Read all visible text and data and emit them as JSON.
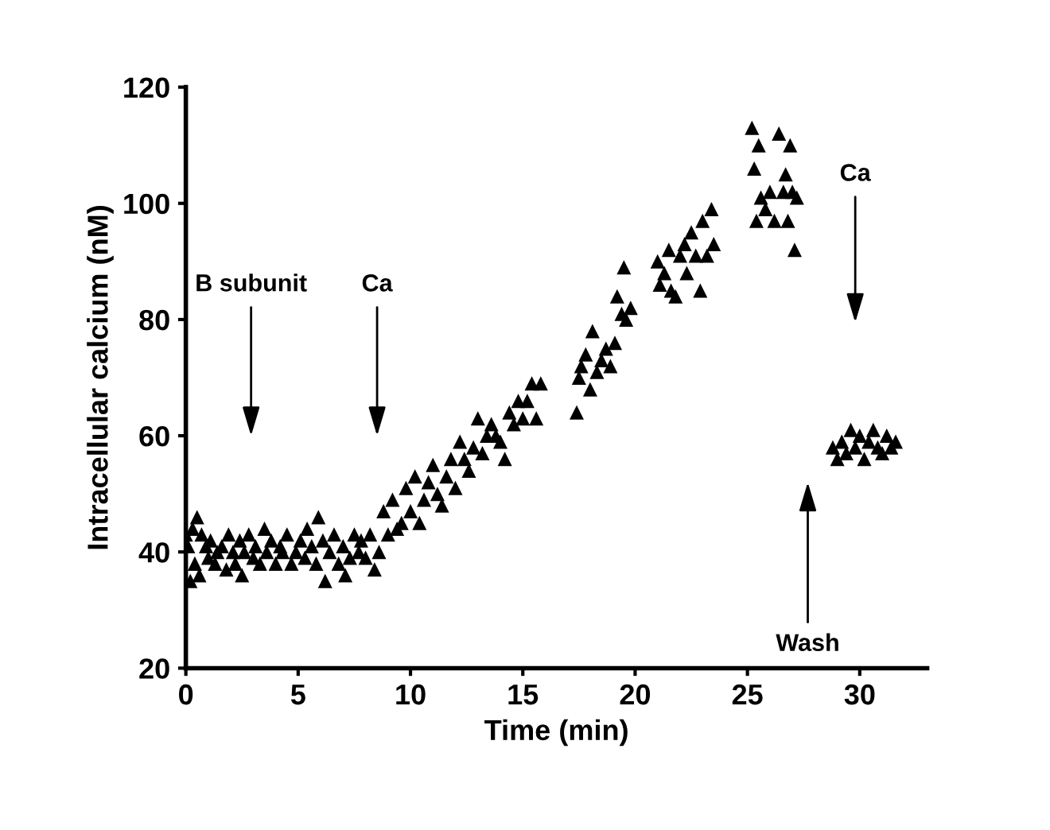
{
  "chart_data": {
    "type": "scatter",
    "xlabel": "Time (min)",
    "ylabel": "Intracellular calcium (nM)",
    "xlim": [
      0,
      33
    ],
    "ylim": [
      20,
      120
    ],
    "xticks": [
      0,
      5,
      10,
      15,
      20,
      25,
      30
    ],
    "yticks": [
      20,
      40,
      60,
      80,
      100,
      120
    ],
    "grid": false,
    "legend": false,
    "marker": "triangle",
    "series": [
      {
        "color": "#000000",
        "x": [
          0,
          0.1,
          0.2,
          0.3,
          0.4,
          0.5,
          0.6,
          0.7,
          0.9,
          1.0,
          1.1,
          1.3,
          1.4,
          1.6,
          1.8,
          1.9,
          2.1,
          2.2,
          2.4,
          2.5,
          2.6,
          2.8,
          3.0,
          3.1,
          3.3,
          3.5,
          3.6,
          3.8,
          4.0,
          4.2,
          4.3,
          4.5,
          4.7,
          4.9,
          5.1,
          5.3,
          5.4,
          5.6,
          5.8,
          5.9,
          6.1,
          6.2,
          6.4,
          6.6,
          6.8,
          7.0,
          7.1,
          7.3,
          7.5,
          7.7,
          7.8,
          8.0,
          8.2,
          8.4,
          8.6,
          8.8,
          9.0,
          9.2,
          9.4,
          9.6,
          9.8,
          10.0,
          10.2,
          10.4,
          10.6,
          10.8,
          11.0,
          11.2,
          11.4,
          11.6,
          11.8,
          12.0,
          12.2,
          12.4,
          12.6,
          12.8,
          13.0,
          13.2,
          13.4,
          13.6,
          13.8,
          14.0,
          14.2,
          14.4,
          14.6,
          14.8,
          15.0,
          15.2,
          15.4,
          15.6,
          15.8,
          17.4,
          17.5,
          17.6,
          17.8,
          18.0,
          18.1,
          18.3,
          18.5,
          18.7,
          18.9,
          19.1,
          19.2,
          19.4,
          19.5,
          19.6,
          19.8,
          21.0,
          21.1,
          21.3,
          21.5,
          21.6,
          21.8,
          22.0,
          22.2,
          22.3,
          22.5,
          22.7,
          22.9,
          23.0,
          23.2,
          23.4,
          23.5,
          25.2,
          25.3,
          25.4,
          25.5,
          25.6,
          25.8,
          26.0,
          26.2,
          26.4,
          26.6,
          26.7,
          26.8,
          26.9,
          27.0,
          27.1,
          27.2,
          28.8,
          29.0,
          29.2,
          29.4,
          29.6,
          29.8,
          30.0,
          30.2,
          30.4,
          30.6,
          30.8,
          31.0,
          31.2,
          31.4,
          31.6
        ],
        "values": [
          43,
          41,
          35,
          44,
          38,
          46,
          36,
          43,
          41,
          39,
          42,
          38,
          40,
          41,
          37,
          43,
          40,
          38,
          42,
          36,
          40,
          43,
          39,
          41,
          38,
          44,
          40,
          42,
          38,
          41,
          40,
          43,
          38,
          40,
          42,
          39,
          44,
          41,
          38,
          46,
          42,
          35,
          40,
          43,
          38,
          41,
          36,
          39,
          43,
          40,
          42,
          39,
          43,
          37,
          40,
          47,
          43,
          49,
          44,
          45,
          51,
          47,
          53,
          45,
          49,
          52,
          55,
          50,
          48,
          53,
          56,
          51,
          59,
          56,
          54,
          58,
          63,
          57,
          60,
          62,
          60,
          59,
          56,
          64,
          62,
          66,
          63,
          66,
          69,
          63,
          69,
          64,
          70,
          72,
          74,
          68,
          78,
          71,
          73,
          75,
          72,
          76,
          84,
          81,
          89,
          80,
          82,
          90,
          86,
          88,
          92,
          85,
          84,
          91,
          93,
          88,
          95,
          91,
          85,
          97,
          91,
          99,
          93,
          113,
          106,
          97,
          110,
          101,
          99,
          102,
          97,
          112,
          102,
          105,
          97,
          110,
          102,
          92,
          101,
          58,
          56,
          59,
          57,
          61,
          58,
          60,
          56,
          59,
          61,
          58,
          57,
          60,
          58,
          59
        ]
      }
    ],
    "annotations": [
      "B subunit",
      "Ca",
      "Wash",
      "Ca"
    ]
  }
}
